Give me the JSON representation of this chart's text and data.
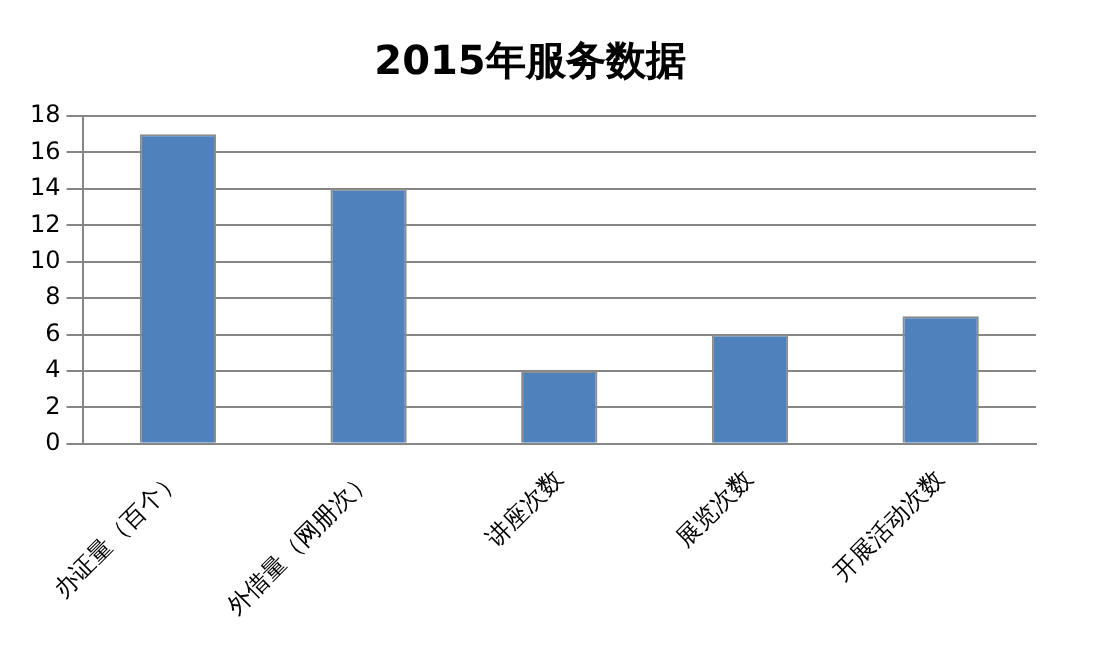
{
  "chart_data": {
    "type": "bar",
    "title": "2015年服务数据",
    "categories": [
      "办证量（百个）",
      "外借量（网册次）",
      "讲座次数",
      "展览次数",
      "开展活动次数"
    ],
    "values": [
      17,
      14,
      4,
      6,
      7
    ],
    "color": "#4f81bd",
    "ylim": [
      0,
      18
    ],
    "yticks": [
      0,
      2,
      4,
      6,
      8,
      10,
      12,
      14,
      16,
      18
    ],
    "grid": "y",
    "legend": false
  }
}
